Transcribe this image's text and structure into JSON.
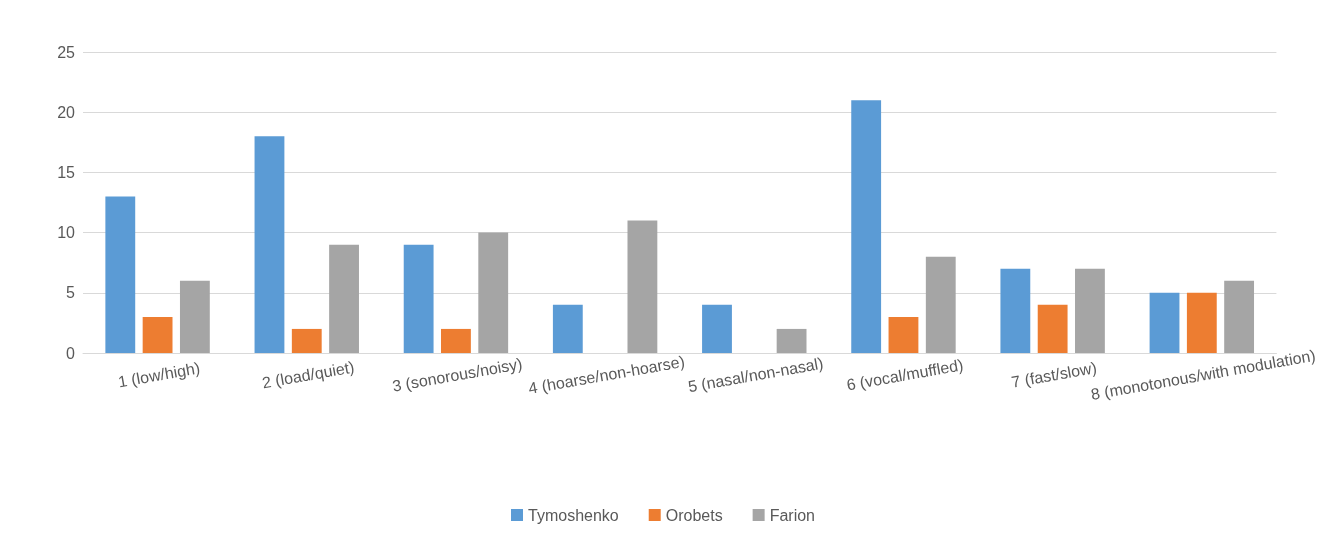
{
  "chart_data": {
    "type": "bar",
    "categories": [
      "1 (low/high)",
      "2 (load/quiet)",
      "3 (sonorous/noisy)",
      "4 (hoarse/non-hoarse)",
      "5 (nasal/non-nasal)",
      "6 (vocal/muffled)",
      "7 (fast/slow)",
      "8 (monotonous/with modulation)"
    ],
    "series": [
      {
        "name": "Tymoshenko",
        "color": "#5b9bd5",
        "values": [
          13,
          18,
          9,
          4,
          4,
          21,
          7,
          5
        ]
      },
      {
        "name": "Orobets",
        "color": "#ed7d31",
        "values": [
          3,
          2,
          2,
          null,
          null,
          3,
          4,
          5
        ]
      },
      {
        "name": "Farion",
        "color": "#a5a5a5",
        "values": [
          6,
          9,
          10,
          11,
          2,
          8,
          7,
          6
        ]
      }
    ],
    "ylim": [
      0,
      25
    ],
    "yticks": [
      0,
      5,
      10,
      15,
      20,
      25
    ],
    "grid": "y",
    "legend": "bottom"
  }
}
